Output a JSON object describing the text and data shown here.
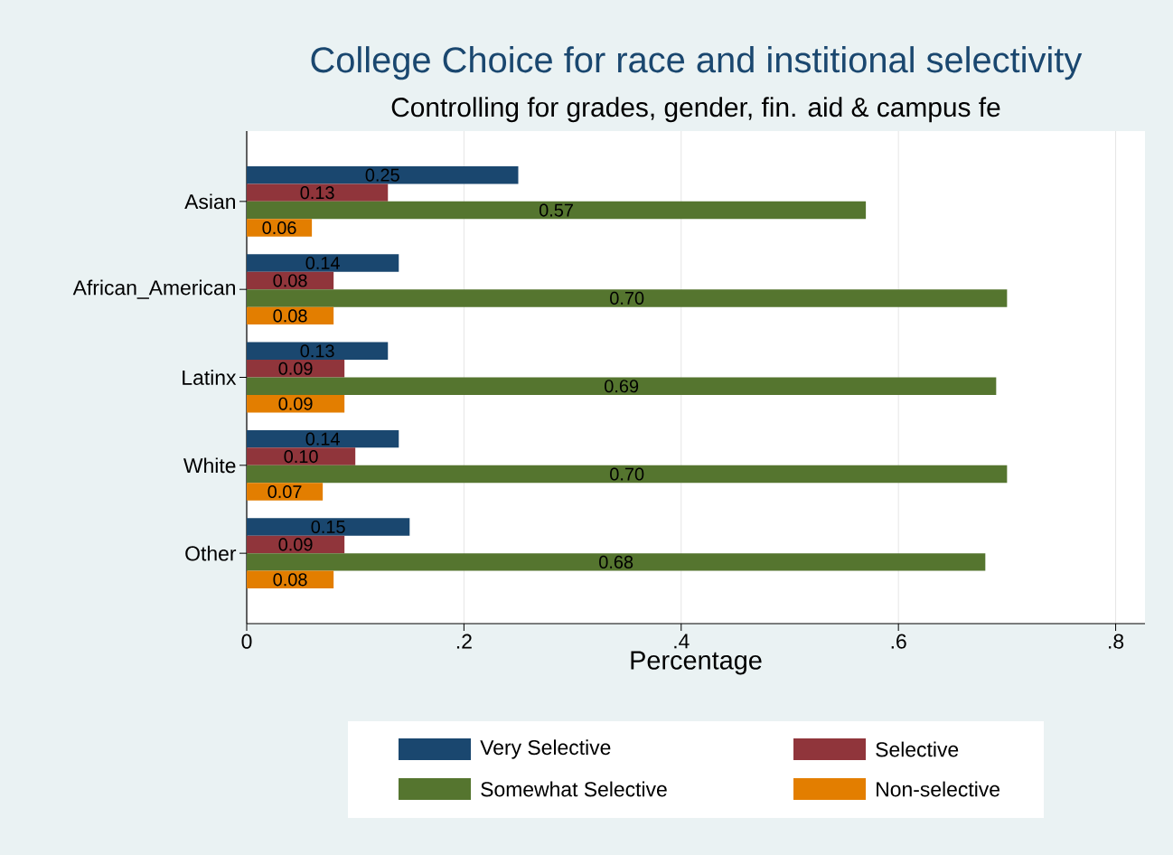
{
  "chart_data": {
    "type": "bar",
    "orientation": "horizontal",
    "title": "College Choice for race and institional selectivity",
    "subtitle": "Controlling for grades, gender, fin. aid & campus fe",
    "xlabel": "Percentage",
    "categories": [
      "Asian",
      "African_American",
      "Latinx",
      "White",
      "Other"
    ],
    "series": [
      {
        "name": "Very Selective",
        "color": "#1a476f",
        "values": [
          0.25,
          0.14,
          0.13,
          0.14,
          0.15
        ],
        "value_labels": [
          "0.25",
          "0.14",
          "0.13",
          "0.14",
          "0.15"
        ]
      },
      {
        "name": "Selective",
        "color": "#90353b",
        "values": [
          0.13,
          0.08,
          0.09,
          0.1,
          0.09
        ],
        "value_labels": [
          "0.13",
          "0.08",
          "0.09",
          "0.10",
          "0.09"
        ]
      },
      {
        "name": "Somewhat Selective",
        "color": "#55752f",
        "values": [
          0.57,
          0.7,
          0.69,
          0.7,
          0.68
        ],
        "value_labels": [
          "0.57",
          "0.70",
          "0.69",
          "0.70",
          "0.68"
        ]
      },
      {
        "name": "Non-selective",
        "color": "#e37e00",
        "values": [
          0.06,
          0.08,
          0.09,
          0.07,
          0.08
        ],
        "value_labels": [
          "0.06",
          "0.08",
          "0.09",
          "0.07",
          "0.08"
        ]
      }
    ],
    "xlim": [
      0,
      0.827
    ],
    "xticks": [
      0,
      {
        "value": 0.2,
        "label": ".2"
      },
      {
        "value": 0.4,
        "label": ".4"
      },
      {
        "value": 0.6,
        "label": ".6"
      },
      {
        "value": 0.8,
        "label": ".8"
      }
    ],
    "grid": "x",
    "legend": "bottom"
  }
}
